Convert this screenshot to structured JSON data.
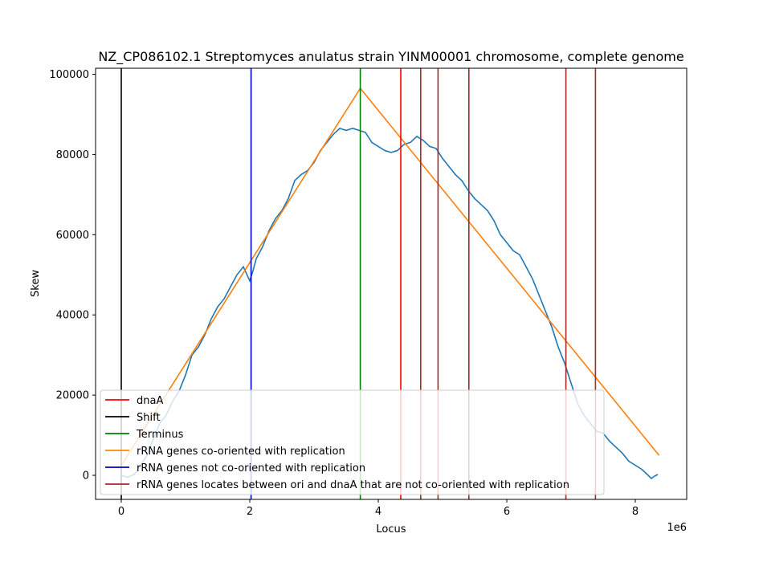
{
  "chart_data": {
    "type": "line",
    "title": "NZ_CP086102.1 Streptomyces anulatus strain YINM00001 chromosome, complete genome",
    "xlabel": "Locus",
    "ylabel": "Skew",
    "x_offset_label": "1e6",
    "xlim": [
      -400000,
      8800000
    ],
    "ylim": [
      -6000,
      101500
    ],
    "x_ticks": [
      0,
      2000000,
      4000000,
      6000000,
      8000000
    ],
    "x_tick_labels": [
      "0",
      "2",
      "4",
      "6",
      "8"
    ],
    "y_ticks": [
      0,
      20000,
      40000,
      60000,
      80000,
      100000
    ],
    "y_tick_labels": [
      "0",
      "20000",
      "40000",
      "60000",
      "80000",
      "100000"
    ],
    "grid": false,
    "legend_position": "lower-left",
    "skew_series": {
      "color": "#1f77b4",
      "x": [
        0,
        100000,
        200000,
        300000,
        400000,
        500000,
        600000,
        700000,
        800000,
        900000,
        1000000,
        1100000,
        1200000,
        1300000,
        1400000,
        1500000,
        1600000,
        1700000,
        1800000,
        1900000,
        2000000,
        2050000,
        2100000,
        2200000,
        2300000,
        2400000,
        2500000,
        2600000,
        2700000,
        2800000,
        2900000,
        3000000,
        3100000,
        3200000,
        3300000,
        3400000,
        3500000,
        3600000,
        3700000,
        3800000,
        3900000,
        4000000,
        4100000,
        4200000,
        4300000,
        4400000,
        4500000,
        4600000,
        4700000,
        4800000,
        4900000,
        5000000,
        5100000,
        5200000,
        5300000,
        5400000,
        5500000,
        5600000,
        5700000,
        5800000,
        5900000,
        6000000,
        6100000,
        6200000,
        6300000,
        6400000,
        6500000,
        6600000,
        6700000,
        6800000,
        6900000,
        7000000,
        7100000,
        7200000,
        7300000,
        7400000,
        7500000,
        7600000,
        7700000,
        7800000,
        7900000,
        8000000,
        8100000,
        8200000,
        8250000,
        8300000,
        8350000
      ],
      "y": [
        0,
        -500,
        200,
        2500,
        5000,
        9000,
        13000,
        15000,
        18500,
        21000,
        25000,
        30000,
        32000,
        35000,
        39000,
        42000,
        44000,
        47000,
        50000,
        52000,
        48500,
        51000,
        54000,
        57000,
        61000,
        64000,
        66000,
        69000,
        73500,
        75000,
        76000,
        78000,
        81000,
        83000,
        85000,
        86500,
        86000,
        86500,
        86000,
        85500,
        83000,
        82000,
        81000,
        80500,
        81000,
        82500,
        83000,
        84500,
        83500,
        82000,
        81500,
        79000,
        77000,
        75000,
        73500,
        71000,
        69000,
        67500,
        66000,
        63500,
        60000,
        58000,
        56000,
        55000,
        52000,
        49000,
        45000,
        41000,
        37000,
        32000,
        28000,
        23000,
        18000,
        15000,
        13000,
        11000,
        10500,
        8500,
        7000,
        5500,
        3500,
        2500,
        1500,
        0,
        -800,
        -200,
        200
      ]
    },
    "coorientation_series": {
      "color": "#ff7f0e",
      "x": [
        0,
        3720000,
        8370000
      ],
      "y": [
        2500,
        96500,
        5000
      ]
    },
    "vertical_lines": {
      "dnaA": [
        4350000
      ],
      "shift": [
        0
      ],
      "terminus": [
        3720000
      ],
      "rrna_not_cooriented": [
        2020000
      ],
      "rrna_between_ori_dnaA": [
        4660000,
        4930000,
        5410000,
        6920000,
        7380000
      ]
    },
    "colors": {
      "dnaA": "#ff0000",
      "shift": "#000000",
      "terminus": "#008000",
      "rrna_cooriented": "#ff8c00",
      "rrna_not_cooriented": "#0000cc",
      "rrna_between": "#a52a2a"
    },
    "legend": [
      {
        "label": "dnaA",
        "color": "#ff0000"
      },
      {
        "label": "Shift",
        "color": "#000000"
      },
      {
        "label": "Terminus",
        "color": "#008000"
      },
      {
        "label": "rRNA genes co-oriented with replication",
        "color": "#ff8c00"
      },
      {
        "label": "rRNA genes not co-oriented with replication",
        "color": "#0000cc"
      },
      {
        "label": "rRNA genes locates between ori and dnaA that are not co-oriented with replication",
        "color": "#a52a2a"
      }
    ]
  }
}
